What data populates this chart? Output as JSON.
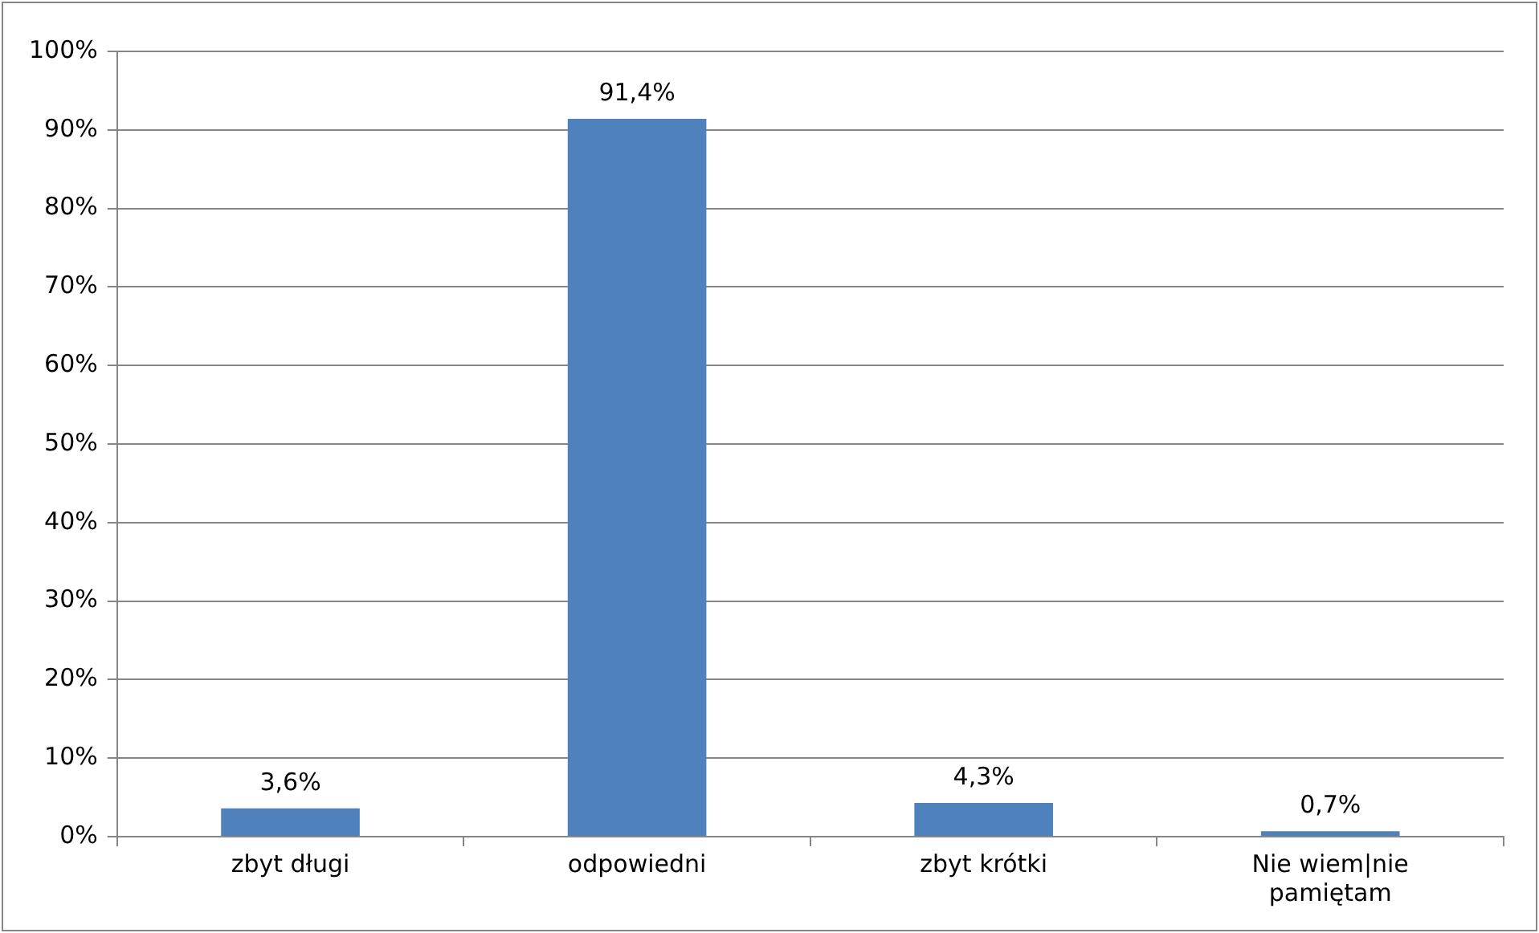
{
  "chart_data": {
    "type": "bar",
    "categories": [
      "zbyt długi",
      "odpowiedni",
      "zbyt krótki",
      "Nie wiem|nie pamiętam"
    ],
    "values": [
      3.6,
      91.4,
      4.3,
      0.7
    ],
    "color": "#4f81bd",
    "value_labels": [
      "3,6%",
      "91,4%",
      "4,3%",
      "0,7%"
    ],
    "ylim": [
      0,
      100
    ],
    "yticks": [
      {
        "value": 0,
        "label": "0%"
      },
      {
        "value": 10,
        "label": "10%"
      },
      {
        "value": 20,
        "label": "20%"
      },
      {
        "value": 30,
        "label": "30%"
      },
      {
        "value": 40,
        "label": "40%"
      },
      {
        "value": 50,
        "label": "50%"
      },
      {
        "value": 60,
        "label": "60%"
      },
      {
        "value": 70,
        "label": "70%"
      },
      {
        "value": 80,
        "label": "80%"
      },
      {
        "value": 90,
        "label": "90%"
      },
      {
        "value": 100,
        "label": "100%"
      }
    ],
    "grid": "y",
    "legend": false
  }
}
